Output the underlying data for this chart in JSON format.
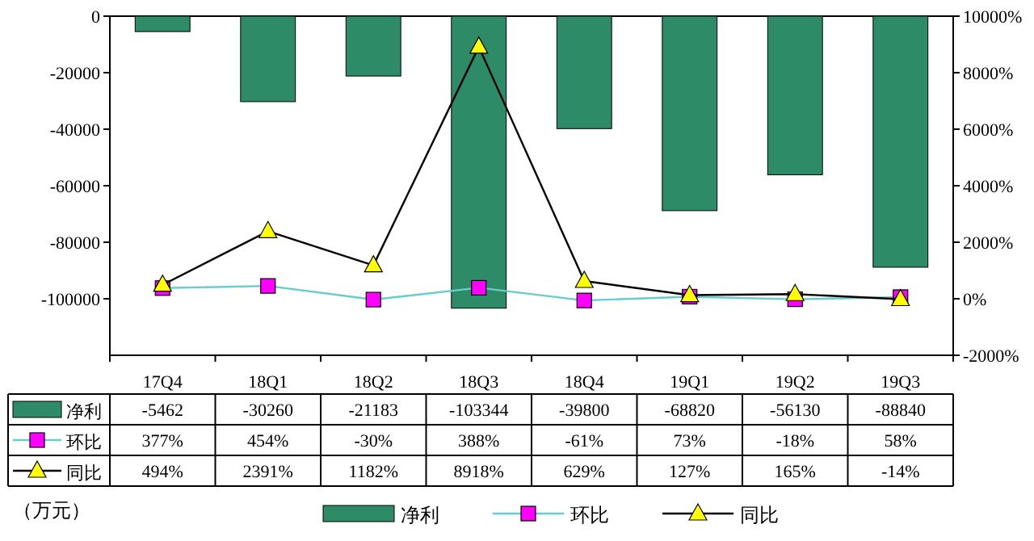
{
  "chart_data": {
    "type": "bar",
    "categories": [
      "17Q4",
      "18Q1",
      "18Q2",
      "18Q3",
      "18Q4",
      "19Q1",
      "19Q2",
      "19Q3"
    ],
    "series": [
      {
        "name": "净利",
        "color": "#2e8b67",
        "values": [
          -5462,
          -30260,
          -21183,
          -103344,
          -39800,
          -68820,
          -56130,
          -88840
        ],
        "value_labels": [
          "-5462",
          "-30260",
          "-21183",
          "-103344",
          "-39800",
          "-68820",
          "-56130",
          "-88840"
        ]
      },
      {
        "name": "环比",
        "type": "line",
        "axis": "y2",
        "color": "#66cccc",
        "marker": "square",
        "colors": [
          "#ff00ff",
          "#ff00ff",
          "#ff00ff",
          "#ff00ff",
          "#ff00ff",
          "#ff00ff",
          "#ff00ff",
          "#ff00ff"
        ],
        "values": [
          377,
          454,
          -30,
          388,
          -61,
          73,
          -18,
          58
        ],
        "value_labels": [
          "377%",
          "454%",
          "-30%",
          "388%",
          "-61%",
          "73%",
          "-18%",
          "58%"
        ]
      },
      {
        "name": "同比",
        "type": "line",
        "axis": "y2",
        "color": "#000000",
        "marker": "triangle",
        "colors": [
          "#ffff00",
          "#ffff00",
          "#ffff00",
          "#ffff00",
          "#ffff00",
          "#ffff00",
          "#ffff00",
          "#ffff00"
        ],
        "values": [
          494,
          2391,
          1182,
          8918,
          629,
          127,
          165,
          -14
        ],
        "value_labels": [
          "494%",
          "2391%",
          "1182%",
          "8918%",
          "629%",
          "127%",
          "165%",
          "-14%"
        ]
      }
    ],
    "ylim": [
      -120000,
      0
    ],
    "yticks": [
      0,
      -20000,
      -40000,
      -60000,
      -80000,
      -100000
    ],
    "y2lim": [
      -2000,
      10000
    ],
    "y2ticks": [
      {
        "value": 10000,
        "label": "10000%"
      },
      {
        "value": 8000,
        "label": "8000%"
      },
      {
        "value": 6000,
        "label": "6000%"
      },
      {
        "value": 4000,
        "label": "4000%"
      },
      {
        "value": 2000,
        "label": "2000%"
      },
      {
        "value": 0,
        "label": "0%"
      },
      {
        "value": -2000,
        "label": "-2000%"
      }
    ],
    "legend": "bottom",
    "annotations": [
      "（万元）"
    ]
  }
}
